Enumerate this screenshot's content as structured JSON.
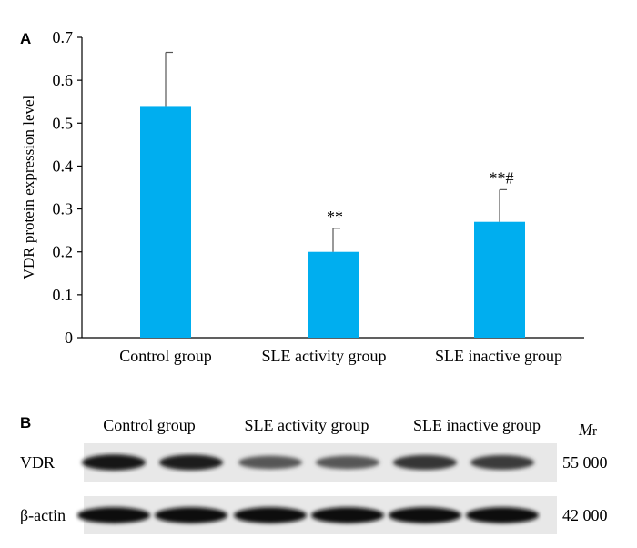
{
  "panel_a": {
    "label": "A",
    "chart_data": {
      "type": "bar",
      "categories": [
        "Control group",
        "SLE activity group",
        "SLE inactive group"
      ],
      "values": [
        0.54,
        0.2,
        0.27
      ],
      "error": [
        0.125,
        0.055,
        0.075
      ],
      "annotations": [
        "",
        "**",
        "**#"
      ],
      "title": "",
      "xlabel": "",
      "ylabel": "VDR protein expression level",
      "ylim": [
        0,
        0.7
      ],
      "yticks": [
        "0",
        "0.1",
        "0.2",
        "0.3",
        "0.4",
        "0.5",
        "0.6",
        "0.7"
      ],
      "bar_color": "#00AEEF",
      "grid": false
    }
  },
  "panel_b": {
    "label": "B",
    "columns": [
      "Control group",
      "SLE activity group",
      "SLE inactive group"
    ],
    "mr_header": "Mr",
    "rows": [
      {
        "name": "VDR",
        "mr": "55 000",
        "intensity": [
          0.9,
          0.85,
          0.45,
          0.45,
          0.7,
          0.65
        ]
      },
      {
        "name": "β-actin",
        "mr": "42 000",
        "intensity": [
          0.95,
          0.95,
          0.95,
          0.95,
          0.95,
          0.95
        ]
      }
    ]
  }
}
